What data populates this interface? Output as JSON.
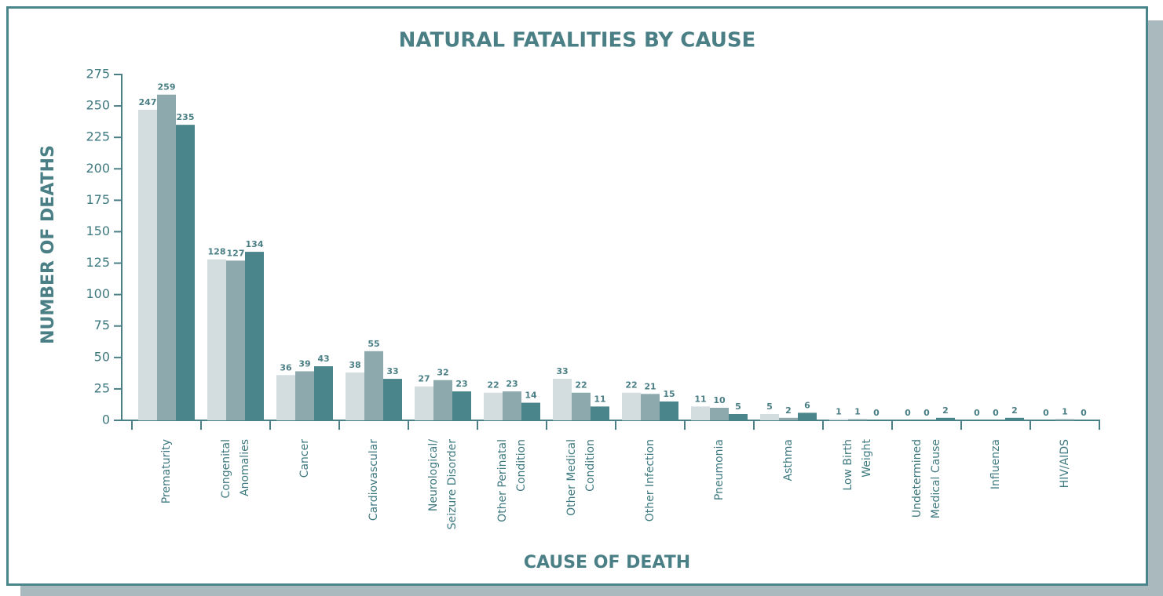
{
  "chart_data": {
    "type": "bar",
    "title": "NATURAL FATALITIES BY CAUSE",
    "ylabel": "NUMBER OF DEATHS",
    "xlabel": "CAUSE OF DEATH",
    "categories": [
      [
        "Prematurity"
      ],
      [
        "Congenital",
        "Anomalies"
      ],
      [
        "Cancer"
      ],
      [
        "Cardiovascular"
      ],
      [
        "Neurological/",
        "Seizure Disorder"
      ],
      [
        "Other Perinatal",
        "Condition"
      ],
      [
        "Other Medical",
        "Condition"
      ],
      [
        "Other Infection"
      ],
      [
        "Pneumonia"
      ],
      [
        "Asthma"
      ],
      [
        "Low Birth",
        "Weight"
      ],
      [
        "Undetermined",
        "Medical Cause"
      ],
      [
        "Influenza"
      ],
      [
        "HIV/AIDS"
      ]
    ],
    "series": [
      {
        "color": "#d3dcdf",
        "values": [
          247,
          128,
          36,
          38,
          27,
          22,
          33,
          22,
          11,
          5,
          1,
          0,
          0,
          0
        ]
      },
      {
        "color": "#8da9ae",
        "values": [
          259,
          127,
          39,
          55,
          32,
          23,
          22,
          21,
          10,
          2,
          1,
          0,
          0,
          1
        ]
      },
      {
        "color": "#4a858b",
        "values": [
          235,
          134,
          43,
          33,
          23,
          14,
          11,
          15,
          5,
          6,
          0,
          2,
          2,
          0
        ]
      }
    ],
    "ylim": [
      0,
      275
    ],
    "yticks": [
      0,
      25,
      50,
      75,
      100,
      125,
      150,
      175,
      200,
      225,
      250,
      275
    ]
  }
}
